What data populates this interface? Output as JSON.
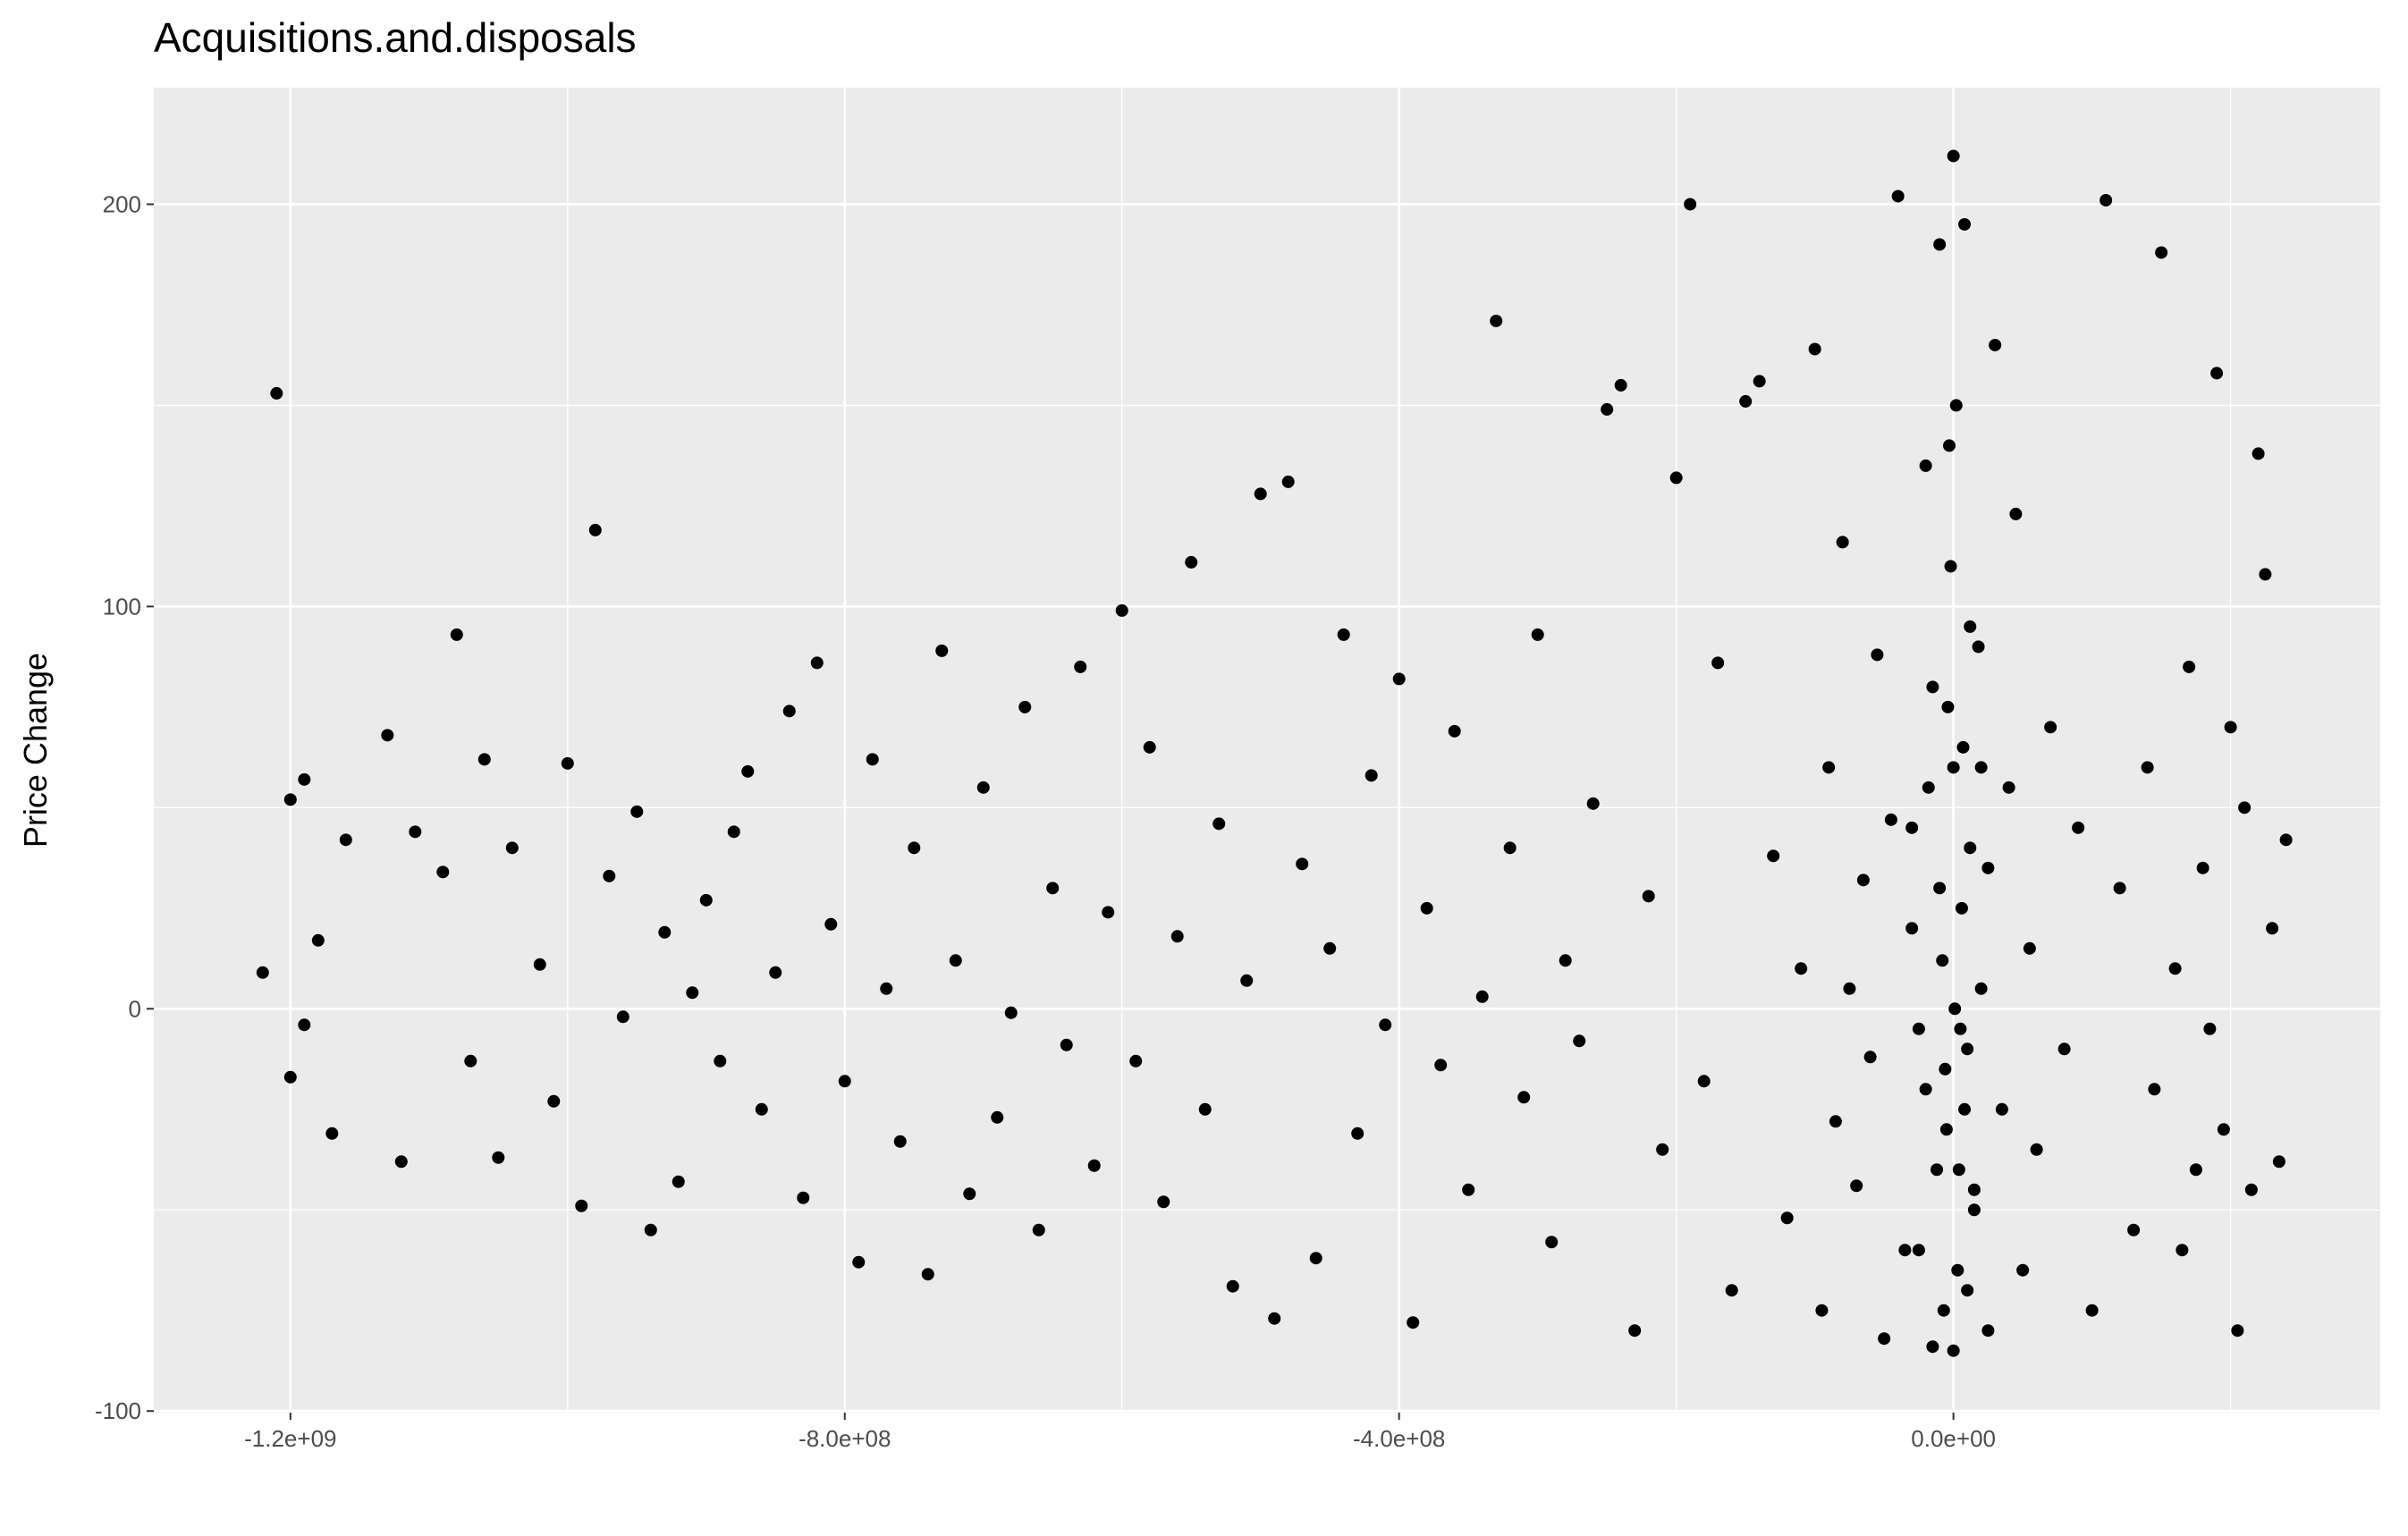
{
  "chart_data": {
    "type": "scatter",
    "title": "Acquisitions.and.disposals",
    "y_label": "Price Change",
    "color": "#000000",
    "grid": true,
    "xlim": [
      -1298600000.0,
      308000000.0
    ],
    "ylim": [
      -100.4,
      229
    ],
    "xticks": [
      {
        "value": -1200000000.0,
        "label": "-1.2e+09"
      },
      {
        "value": -800000000.0,
        "label": "-8.0e+08"
      },
      {
        "value": -400000000.0,
        "label": "-4.0e+08"
      },
      {
        "value": 0,
        "label": "0.0e+00"
      }
    ],
    "yticks": [
      -100,
      0,
      100,
      200
    ],
    "x": [
      -1210000000.0,
      -1200000000.0,
      -1190000000.0,
      -1220000000.0,
      -1200000000.0,
      -1190000000.0,
      -1170000000.0,
      -1160000000.0,
      -1180000000.0,
      -1130000000.0,
      -1120000000.0,
      -1110000000.0,
      -1090000000.0,
      -1080000000.0,
      -1070000000.0,
      -1060000000.0,
      -1050000000.0,
      -1040000000.0,
      -1020000000.0,
      -1010000000.0,
      -1000000000.0,
      -980000000.0,
      -990000000.0,
      -970000000.0,
      -960000000.0,
      -950000000.0,
      -940000000.0,
      -930000000.0,
      -920000000.0,
      -910000000.0,
      -900000000.0,
      -890000000.0,
      -880000000.0,
      -870000000.0,
      -860000000.0,
      -850000000.0,
      -840000000.0,
      -830000000.0,
      -820000000.0,
      -810000000.0,
      -800000000.0,
      -790000000.0,
      -780000000.0,
      -770000000.0,
      -760000000.0,
      -750000000.0,
      -740000000.0,
      -730000000.0,
      -720000000.0,
      -710000000.0,
      -700000000.0,
      -690000000.0,
      -680000000.0,
      -670000000.0,
      -660000000.0,
      -650000000.0,
      -640000000.0,
      -630000000.0,
      -620000000.0,
      -610000000.0,
      -600000000.0,
      -590000000.0,
      -580000000.0,
      -570000000.0,
      -560000000.0,
      -550000000.0,
      -540000000.0,
      -530000000.0,
      -520000000.0,
      -510000000.0,
      -500000000.0,
      -490000000.0,
      -480000000.0,
      -470000000.0,
      -460000000.0,
      -450000000.0,
      -440000000.0,
      -430000000.0,
      -420000000.0,
      -410000000.0,
      -400000000.0,
      -390000000.0,
      -380000000.0,
      -370000000.0,
      -360000000.0,
      -350000000.0,
      -340000000.0,
      -330000000.0,
      -320000000.0,
      -310000000.0,
      -300000000.0,
      -290000000.0,
      -280000000.0,
      -270000000.0,
      -260000000.0,
      -250000000.0,
      -240000000.0,
      -230000000.0,
      -220000000.0,
      -210000000.0,
      -200000000.0,
      -190000000.0,
      -180000000.0,
      -170000000.0,
      -160000000.0,
      -150000000.0,
      -140000000.0,
      -130000000.0,
      -120000000.0,
      -110000000.0,
      -100000000.0,
      -95000000.0,
      -90000000.0,
      -85000000.0,
      -80000000.0,
      -75000000.0,
      -70000000.0,
      -65000000.0,
      -60000000.0,
      -55000000.0,
      -50000000.0,
      -45000000.0,
      -40000000.0,
      -35000000.0,
      -30000000.0,
      -25000000.0,
      -20000000.0,
      -15000000.0,
      -10000000.0,
      -5000000.0,
      0,
      0,
      0,
      2000000.0,
      -2000000.0,
      4000000.0,
      -4000000.0,
      6000000.0,
      -6000000.0,
      8000000.0,
      10000000.0,
      12000000.0,
      15000000.0,
      18000000.0,
      20000000.0,
      25000000.0,
      30000000.0,
      35000000.0,
      40000000.0,
      45000000.0,
      50000000.0,
      55000000.0,
      60000000.0,
      70000000.0,
      80000000.0,
      90000000.0,
      100000000.0,
      110000000.0,
      120000000.0,
      130000000.0,
      140000000.0,
      145000000.0,
      150000000.0,
      160000000.0,
      165000000.0,
      170000000.0,
      175000000.0,
      180000000.0,
      185000000.0,
      190000000.0,
      195000000.0,
      200000000.0,
      205000000.0,
      210000000.0,
      215000000.0,
      220000000.0,
      225000000.0,
      230000000.0,
      235000000.0,
      240000000.0,
      -30000000.0,
      -20000000.0,
      -10000000.0,
      10000000.0,
      20000000.0,
      -15000000.0,
      15000000.0,
      -25000000.0,
      25000000.0,
      -8000000.0,
      8000000.0,
      -12000000.0,
      12000000.0,
      -18000000.0,
      5000000.0,
      -3000000.0,
      3000000.0,
      -7000000.0,
      7000000.0,
      1000000.0
    ],
    "values": [
      153,
      52,
      57,
      9,
      -17,
      -4,
      -31,
      42,
      17,
      68,
      -38,
      44,
      34,
      93,
      -13,
      62,
      -37,
      40,
      11,
      -23,
      61,
      119,
      -49,
      33,
      -2,
      49,
      -55,
      19,
      -43,
      4,
      27,
      -13,
      44,
      59,
      -25,
      9,
      74,
      -47,
      86,
      21,
      -18,
      -63,
      62,
      5,
      -33,
      40,
      -66,
      89,
      12,
      -46,
      55,
      -27,
      -1,
      75,
      -55,
      30,
      -9,
      85,
      -39,
      24,
      99,
      -13,
      65,
      -48,
      18,
      111,
      -25,
      46,
      -69,
      7,
      128,
      -77,
      131,
      36,
      -62,
      15,
      93,
      -31,
      58,
      -4,
      82,
      -78,
      25,
      -14,
      69,
      -45,
      3,
      171,
      40,
      -22,
      93,
      -58,
      12,
      -8,
      51,
      149,
      155,
      -80,
      28,
      -35,
      132,
      200,
      -18,
      86,
      -70,
      151,
      156,
      38,
      -52,
      10,
      164,
      -75,
      60,
      -28,
      116,
      5,
      -44,
      32,
      -12,
      88,
      -82,
      47,
      202,
      -60,
      20,
      -5,
      135,
      -84,
      190,
      -30,
      212,
      60,
      -85,
      150,
      110,
      -40,
      75,
      25,
      -15,
      195,
      -70,
      40,
      -50,
      90,
      5,
      -80,
      165,
      -25,
      55,
      123,
      -65,
      15,
      -35,
      70,
      -10,
      45,
      -75,
      201,
      30,
      -55,
      60,
      -20,
      188,
      10,
      -60,
      85,
      -40,
      35,
      -5,
      158,
      -30,
      70,
      -80,
      50,
      -45,
      138,
      108,
      20,
      -38,
      42,
      45,
      -20,
      30,
      -10,
      60,
      80,
      -45,
      -60,
      35,
      12,
      -25,
      -40,
      95,
      55,
      -5,
      140,
      -65,
      -75,
      65,
      0
    ]
  }
}
